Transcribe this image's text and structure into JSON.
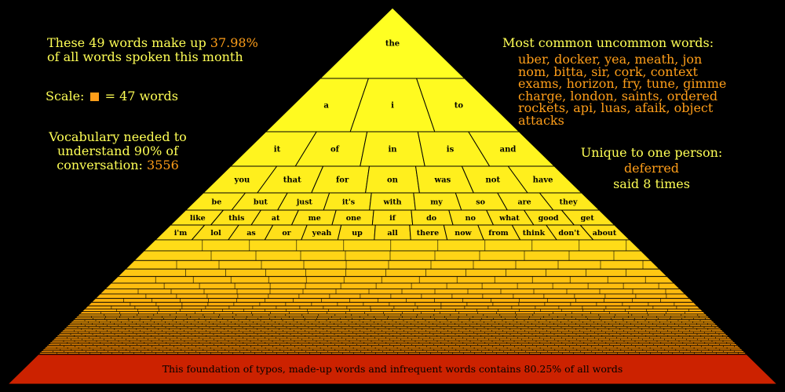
{
  "stats": {
    "coverage_text": "These 49 words make up",
    "coverage_percent": "37.98%",
    "coverage_text2": "of all words spoken this month",
    "scale_label": "Scale:",
    "scale_text": "= 47 words",
    "vocab_line1": "Vocabulary needed to",
    "vocab_line2": "understand 90% of",
    "vocab_line3": "conversation:",
    "vocab_value": "3556"
  },
  "uncommon": {
    "title": "Most common uncommon words:",
    "lines": [
      "uber, docker, yea, meath, jon",
      "nom, bitta, sir, cork, context",
      "exams, horizon, fry, tune, gimme",
      "charge, london, saints, ordered",
      "rockets, api, luas, afaik, object",
      "attacks"
    ]
  },
  "unique": {
    "title": "Unique to one person:",
    "word": "deferred",
    "count_text": "said 8 times"
  },
  "pyramid": {
    "rows": [
      [
        "the"
      ],
      [
        "a",
        "i",
        "to"
      ],
      [
        "it",
        "of",
        "in",
        "is",
        "and"
      ],
      [
        "you",
        "that",
        "for",
        "on",
        "was",
        "not",
        "have"
      ],
      [
        "be",
        "but",
        "just",
        "it's",
        "with",
        "my",
        "so",
        "are",
        "they"
      ],
      [
        "like",
        "this",
        "at",
        "me",
        "one",
        "if",
        "do",
        "no",
        "what",
        "good",
        "get"
      ],
      [
        "i'm",
        "lol",
        "as",
        "or",
        "yeah",
        "up",
        "all",
        "there",
        "now",
        "from",
        "think",
        "don't",
        "about"
      ]
    ],
    "foundation_text": "This foundation of typos, made-up words and infrequent words contains 80.25% of all words",
    "foundation_percent": 80.25
  },
  "colors": {
    "background": "#000000",
    "text_yellow": "#ffff55",
    "text_orange": "#ff9e19",
    "brick_top": "#ffff22",
    "brick_bottom": "#ff8a00",
    "foundation": "#cc2200",
    "scale_square": "#ff9e19"
  }
}
